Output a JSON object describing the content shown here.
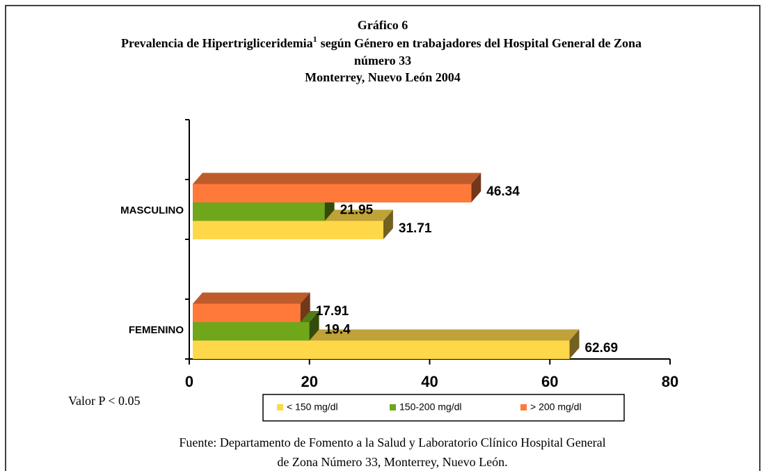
{
  "chart_data": {
    "type": "bar3d_horizontal",
    "title": "Gráfico 6",
    "subtitle": [
      "Prevalencia de Hipertrigliceridemia",
      "según Género en trabajadores del Hospital General de Zona",
      "número 33",
      "Monterrey, Nuevo León 2004"
    ],
    "footnote_mark": "1",
    "categories": [
      "FEMENINO",
      "MASCULINO"
    ],
    "series": [
      {
        "name": "< 150 mg/dl",
        "color": "#ffd84a",
        "values": [
          62.69,
          31.71
        ]
      },
      {
        "name": "150-200 mg/dl",
        "color": "#6fa61a",
        "values": [
          19.4,
          21.95
        ]
      },
      {
        "name": "> 200 mg/dl",
        "color": "#ff7a3a",
        "values": [
          17.91,
          46.34
        ]
      }
    ],
    "xlim": [
      0,
      80
    ],
    "xticks": [
      0,
      20,
      40,
      60,
      80
    ],
    "annotations": [
      "Valor P < 0.05"
    ],
    "source": [
      "Fuente: Departamento de Fomento a la Salud y  Laboratorio Clínico Hospital General",
      "de Zona Número 33, Monterrey, Nuevo León."
    ]
  }
}
